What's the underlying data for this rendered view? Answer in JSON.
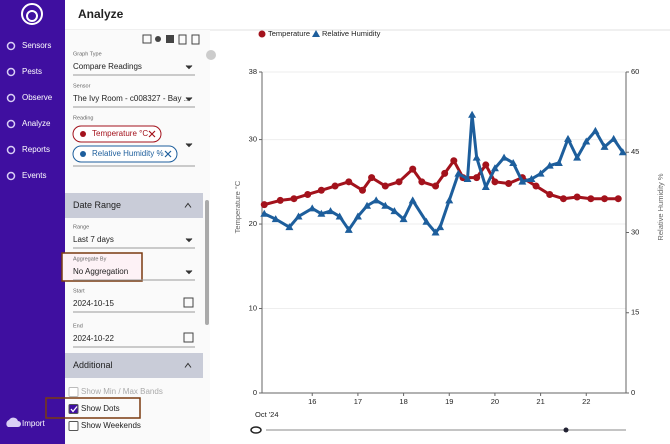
{
  "header": {
    "title": "Analyze"
  },
  "nav": {
    "items": [
      "Sensors",
      "Pests",
      "Observe",
      "Analyze",
      "Reports",
      "Events"
    ],
    "footer": "Import"
  },
  "panel": {
    "graph_type_label": "Graph Type",
    "graph_type": "Compare Readings",
    "sensor_label": "Sensor",
    "sensor": "The Ivy Room - c008327 - Bay ...",
    "reading_label": "Reading",
    "readings": [
      "Temperature °C",
      "Relative Humidity %"
    ],
    "date_range": {
      "title": "Date Range",
      "range_label": "Range",
      "range": "Last 7 days",
      "aggregate_label": "Aggregate By",
      "aggregate": "No Aggregation",
      "start_label": "Start",
      "start": "2024-10-15",
      "end_label": "End",
      "end": "2024-10-22"
    },
    "additional": {
      "title": "Additional",
      "options": [
        {
          "label": "Show Min / Max Bands",
          "checked": false,
          "disabled": true
        },
        {
          "label": "Show Dots",
          "checked": true
        },
        {
          "label": "Show Weekends",
          "checked": false
        }
      ]
    }
  },
  "chart_data": {
    "type": "scatter",
    "ylabel": "Temperature °C",
    "y2label": "Relative Humidity %",
    "xlabel": "Oct '24",
    "xlim": [
      14.9,
      22.87
    ],
    "xticks": [
      16,
      17,
      18,
      19,
      20,
      21,
      22
    ],
    "ylim": [
      0,
      38
    ],
    "yticks": [
      0,
      10,
      20,
      30,
      38
    ],
    "y2lim": [
      0,
      60
    ],
    "y2ticks": [
      0,
      15,
      30,
      45,
      60
    ],
    "grid": true,
    "series": [
      {
        "name": "Temperature",
        "color": "#a3121c",
        "marker": "circle",
        "x": [
          14.95,
          15.3,
          15.6,
          15.9,
          16.2,
          16.5,
          16.8,
          17.1,
          17.3,
          17.6,
          17.9,
          18.2,
          18.4,
          18.7,
          18.9,
          19.1,
          19.3,
          19.6,
          19.8,
          20.0,
          20.3,
          20.6,
          20.9,
          21.2,
          21.5,
          21.8,
          22.1,
          22.4,
          22.7
        ],
        "values": [
          22.3,
          22.8,
          23,
          23.5,
          24,
          24.5,
          25,
          24,
          25.5,
          24.5,
          25,
          26.5,
          25,
          24.5,
          26,
          27.5,
          25.5,
          25.5,
          27,
          25,
          24.8,
          25.5,
          24.5,
          23.5,
          23,
          23.2,
          23,
          23,
          23
        ]
      },
      {
        "name": "Relative Humidity",
        "color": "#1d5e9c",
        "marker": "triangle",
        "axis": "y2",
        "x": [
          14.95,
          15.2,
          15.5,
          15.7,
          16.0,
          16.2,
          16.4,
          16.6,
          16.8,
          17.0,
          17.2,
          17.4,
          17.6,
          17.8,
          18.0,
          18.2,
          18.5,
          18.7,
          18.8,
          19.0,
          19.2,
          19.4,
          19.5,
          19.6,
          19.8,
          20.0,
          20.2,
          20.4,
          20.6,
          20.8,
          21.0,
          21.2,
          21.4,
          21.6,
          21.8,
          22.0,
          22.2,
          22.4,
          22.6,
          22.8
        ],
        "values": [
          33.5,
          32.5,
          31,
          33,
          34.5,
          33.5,
          34,
          33,
          30.5,
          33,
          35,
          36,
          35,
          34,
          32.5,
          36,
          32,
          30,
          31,
          36,
          41,
          40,
          52,
          44,
          38.5,
          42,
          44,
          43,
          39.5,
          40,
          41,
          42.5,
          43,
          47.5,
          44,
          47,
          49,
          46,
          47.5,
          45
        ]
      }
    ]
  }
}
